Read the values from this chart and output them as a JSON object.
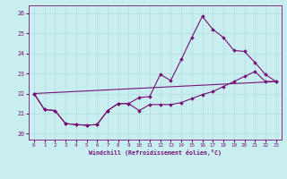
{
  "xlabel": "Windchill (Refroidissement éolien,°C)",
  "bg_color": "#c8eef0",
  "grid_color": "#b0dde0",
  "line_color": "#771177",
  "ylim": [
    19.7,
    26.4
  ],
  "xlim": [
    -0.5,
    23.5
  ],
  "yticks": [
    20,
    21,
    22,
    23,
    24,
    25,
    26
  ],
  "xticks": [
    0,
    1,
    2,
    3,
    4,
    5,
    6,
    7,
    8,
    9,
    10,
    11,
    12,
    13,
    14,
    15,
    16,
    17,
    18,
    19,
    20,
    21,
    22,
    23
  ],
  "line1_x": [
    0,
    1,
    2,
    3,
    4,
    5,
    6,
    7,
    8,
    9,
    10,
    11,
    12,
    13,
    14,
    15,
    16,
    17,
    18,
    19,
    20,
    21,
    22,
    23
  ],
  "line1_y": [
    22.0,
    21.2,
    21.15,
    20.5,
    20.45,
    20.42,
    20.45,
    21.15,
    21.5,
    21.5,
    21.8,
    21.85,
    22.95,
    22.65,
    23.7,
    24.8,
    25.85,
    25.2,
    24.8,
    24.15,
    24.1,
    23.55,
    22.95,
    22.6
  ],
  "line2_x": [
    0,
    1,
    2,
    3,
    4,
    5,
    6,
    7,
    8,
    9,
    10,
    11,
    12,
    13,
    14,
    15,
    16,
    17,
    18,
    19,
    20,
    21,
    22,
    23
  ],
  "line2_y": [
    22.0,
    21.2,
    21.15,
    20.5,
    20.45,
    20.42,
    20.45,
    21.15,
    21.5,
    21.5,
    21.15,
    21.45,
    21.45,
    21.45,
    21.55,
    21.75,
    21.95,
    22.1,
    22.35,
    22.6,
    22.85,
    23.1,
    22.6,
    22.6
  ],
  "line3_x": [
    0,
    23
  ],
  "line3_y": [
    22.0,
    22.6
  ]
}
